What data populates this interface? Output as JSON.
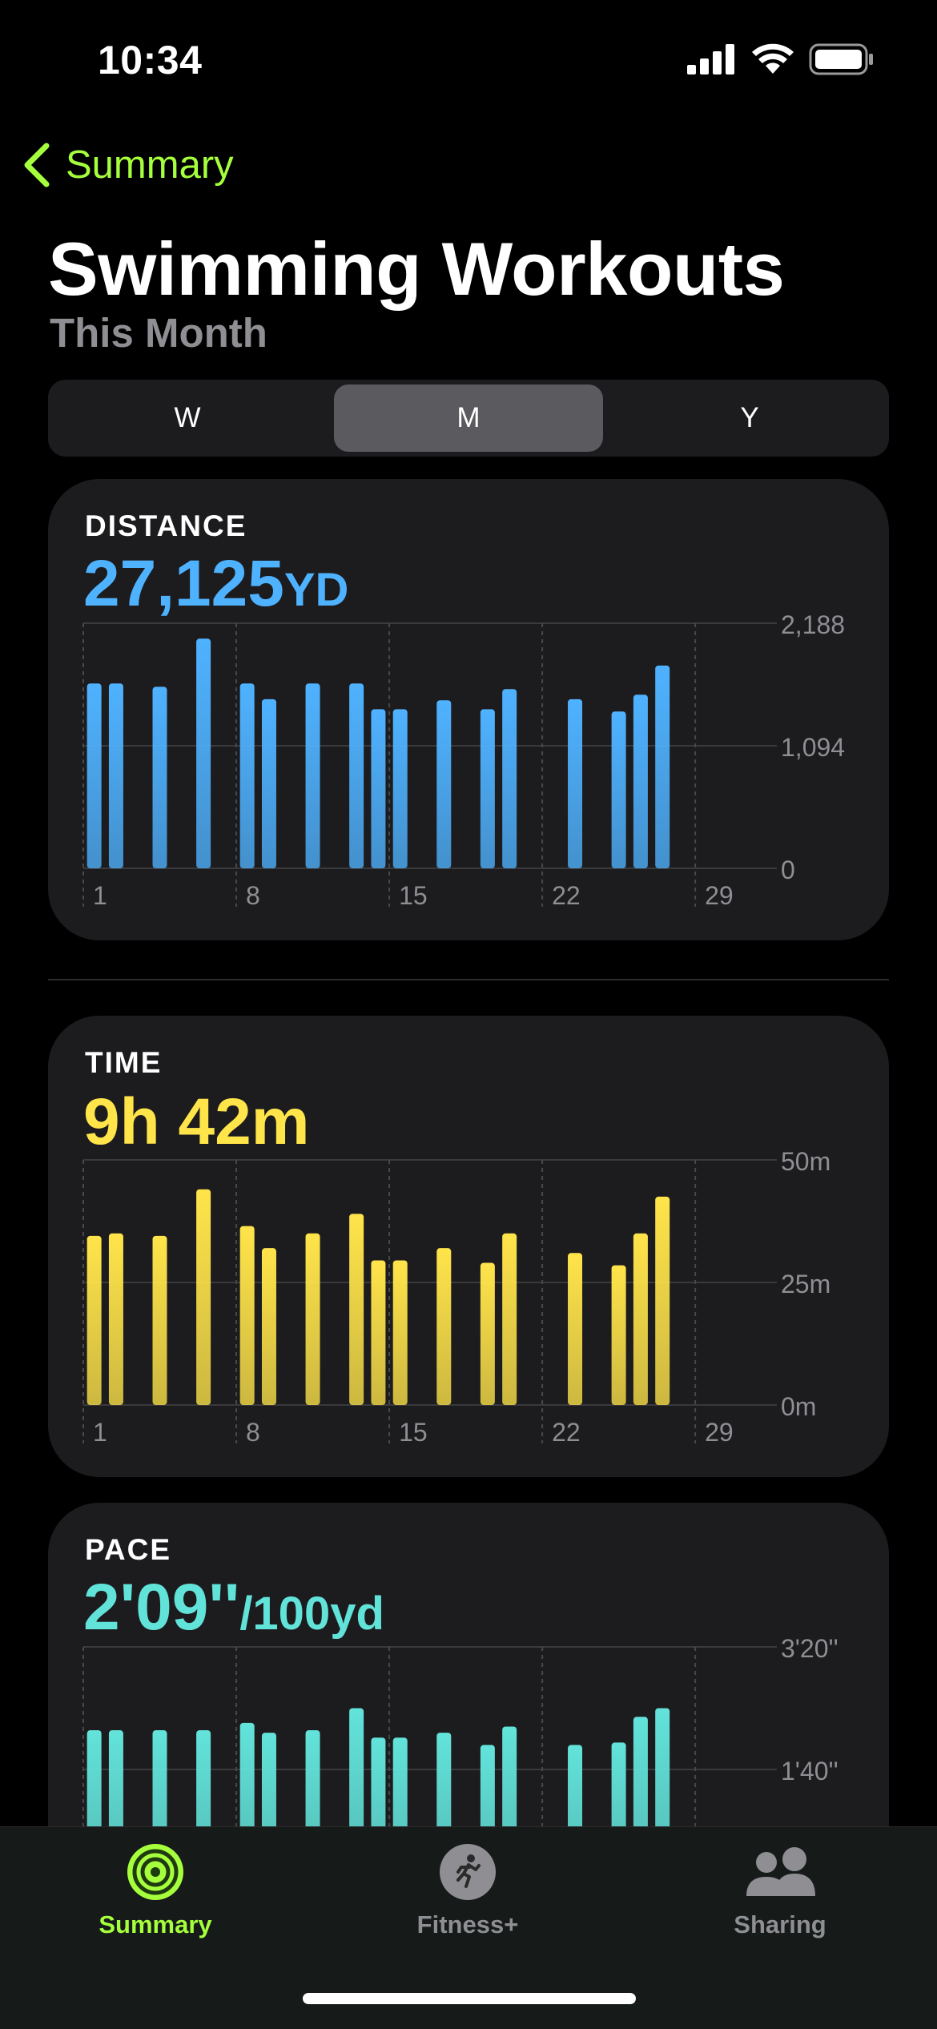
{
  "status": {
    "time": "10:34"
  },
  "nav": {
    "back_label": "Summary"
  },
  "header": {
    "title": "Swimming Workouts",
    "subtitle": "This Month"
  },
  "segments": [
    {
      "label": "W",
      "active": false
    },
    {
      "label": "M",
      "active": true
    },
    {
      "label": "Y",
      "active": false
    }
  ],
  "cards": {
    "distance": {
      "label": "DISTANCE",
      "value": "27,125",
      "unit": "YD",
      "color": "#4fb2ff"
    },
    "time": {
      "label": "TIME",
      "value": "9h 42m",
      "color": "#ffe44a"
    },
    "pace": {
      "label": "PACE",
      "value": "2'09''",
      "unit": "/100yd",
      "color": "#62e3da"
    }
  },
  "chart_data": [
    {
      "type": "bar",
      "name": "distance",
      "x_ticks": [
        "1",
        "8",
        "15",
        "22",
        "29"
      ],
      "y_ticks": [
        "2,188",
        "1,094",
        "0"
      ],
      "ylim": [
        0,
        2188
      ],
      "xlim": [
        1,
        31
      ],
      "unit": "YD",
      "x": [
        1,
        2,
        4,
        6,
        8,
        9,
        11,
        13,
        14,
        15,
        17,
        19,
        20,
        23,
        25,
        26,
        27
      ],
      "values": [
        1650,
        1650,
        1620,
        2050,
        1650,
        1510,
        1650,
        1650,
        1420,
        1420,
        1500,
        1420,
        1600,
        1510,
        1400,
        1550,
        1810
      ]
    },
    {
      "type": "bar",
      "name": "time",
      "x_ticks": [
        "1",
        "8",
        "15",
        "22",
        "29"
      ],
      "y_ticks": [
        "50m",
        "25m",
        "0m"
      ],
      "ylim": [
        0,
        50
      ],
      "xlim": [
        1,
        31
      ],
      "unit": "minutes",
      "x": [
        1,
        2,
        4,
        6,
        8,
        9,
        11,
        13,
        14,
        15,
        17,
        19,
        20,
        23,
        25,
        26,
        27
      ],
      "values": [
        34.5,
        35,
        34.5,
        44,
        36.5,
        32,
        35,
        39,
        29.5,
        29.5,
        32,
        29,
        35,
        31,
        28.5,
        35,
        42.5
      ]
    },
    {
      "type": "bar",
      "name": "pace",
      "x_ticks": [
        "1",
        "8",
        "15",
        "22",
        "29"
      ],
      "y_ticks": [
        "3'20''",
        "1'40''"
      ],
      "ylim": [
        0,
        200
      ],
      "xlim": [
        1,
        31
      ],
      "unit": "seconds per 100yd",
      "x": [
        1,
        2,
        4,
        6,
        8,
        9,
        11,
        13,
        14,
        15,
        17,
        19,
        20,
        23,
        25,
        26,
        27
      ],
      "values": [
        132,
        132,
        132,
        132,
        138,
        130,
        132,
        150,
        126,
        126,
        130,
        120,
        135,
        120,
        122,
        143,
        150
      ]
    }
  ],
  "tabs": [
    {
      "label": "Summary",
      "active": true,
      "icon": "activity-rings-icon"
    },
    {
      "label": "Fitness+",
      "active": false,
      "icon": "running-figure-icon"
    },
    {
      "label": "Sharing",
      "active": false,
      "icon": "people-icon"
    }
  ],
  "colors": {
    "accent_green": "#a6ff3c",
    "distance_blue": "#4fb2ff",
    "time_yellow": "#ffe44a",
    "pace_teal": "#62e3da",
    "inactive_gray": "#8e8e93"
  }
}
